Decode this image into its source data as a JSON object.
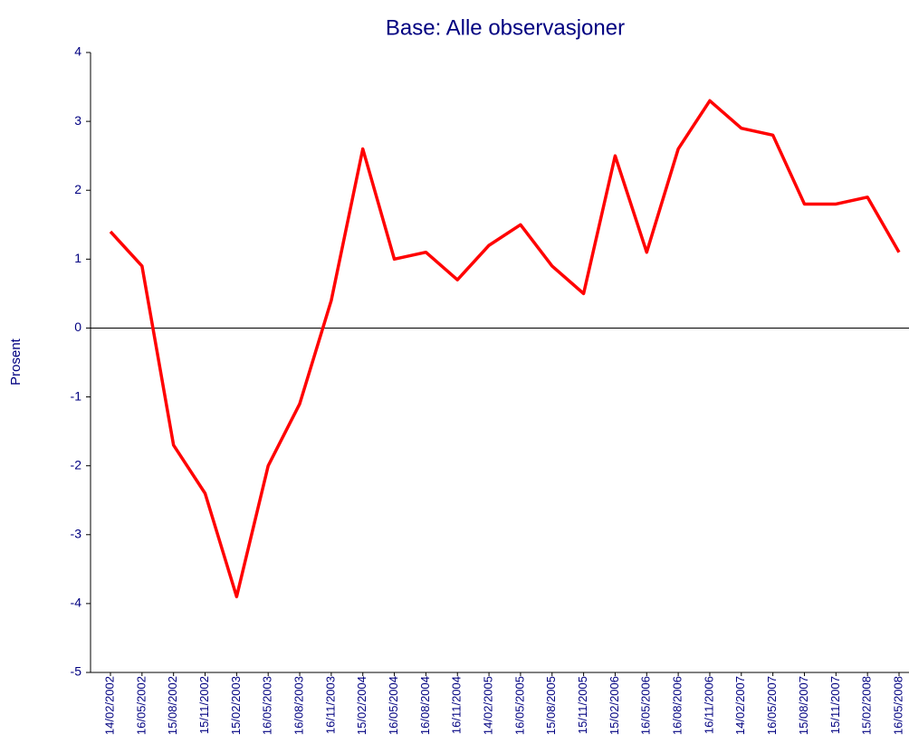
{
  "chart_data": {
    "type": "line",
    "title": "Base:  Alle observasjoner",
    "y_label": "Prosent",
    "categories": [
      "14/02/2002",
      "16/05/2002",
      "15/08/2002",
      "15/11/2002",
      "15/02/2003",
      "16/05/2003",
      "16/08/2003",
      "16/11/2003",
      "15/02/2004",
      "16/05/2004",
      "16/08/2004",
      "16/11/2004",
      "14/02/2005",
      "16/05/2005",
      "15/08/2005",
      "15/11/2005",
      "15/02/2006",
      "16/05/2006",
      "16/08/2006",
      "16/11/2006",
      "14/02/2007",
      "16/05/2007",
      "15/08/2007",
      "15/11/2007",
      "15/02/2008",
      "16/05/2008"
    ],
    "series": [
      {
        "color": "#ff0000",
        "values": [
          1.4,
          0.9,
          -1.7,
          -2.4,
          -3.9,
          -2.0,
          -1.1,
          0.4,
          2.6,
          1.0,
          1.1,
          0.7,
          1.2,
          1.5,
          0.9,
          0.5,
          2.5,
          1.1,
          2.6,
          3.3,
          2.9,
          2.8,
          1.8,
          1.8,
          1.9,
          1.1
        ]
      }
    ],
    "ylim": [
      -5,
      4
    ],
    "yticks": [
      -5,
      -4,
      -3,
      -2,
      -1,
      0,
      1,
      2,
      3,
      4
    ]
  }
}
